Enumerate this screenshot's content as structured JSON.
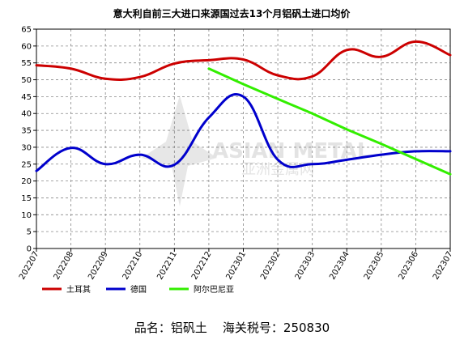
{
  "chart_data": {
    "type": "line",
    "title": "意大利自前三大进口来源国过去13个月铝矾土进口均价",
    "categories": [
      "202207",
      "202208",
      "202209",
      "202210",
      "202211",
      "202212",
      "202301",
      "202302",
      "202303",
      "202304",
      "202305",
      "202306",
      "202307"
    ],
    "ylim": [
      0,
      65
    ],
    "yticks": [
      0,
      5,
      10,
      15,
      20,
      25,
      30,
      35,
      40,
      45,
      50,
      55,
      60,
      65
    ],
    "grid": true,
    "legend_position": "bottom-left",
    "series": [
      {
        "name": "土耳其",
        "color": "#cc0000",
        "values": [
          54.3,
          53.3,
          50.3,
          50.8,
          54.8,
          55.8,
          56.0,
          51.3,
          51.0,
          58.8,
          56.8,
          61.3,
          57.3
        ]
      },
      {
        "name": "德国",
        "color": "#0000cc",
        "values": [
          23.0,
          29.8,
          25.0,
          27.8,
          24.8,
          38.8,
          45.0,
          26.3,
          25.0,
          26.3,
          27.8,
          28.8,
          28.8
        ]
      },
      {
        "name": "阿尔巴尼亚",
        "color": "#33ee00",
        "values": [
          null,
          null,
          null,
          null,
          null,
          53.3,
          48.7,
          44.3,
          40.0,
          35.3,
          31.0,
          26.5,
          22.0
        ]
      }
    ]
  },
  "watermark": {
    "text": "ASIAN METAL",
    "subtext": "亚洲金属网"
  },
  "footer": {
    "product_label": "品名：铝矾土",
    "customs_label": "海关税号：250830"
  }
}
